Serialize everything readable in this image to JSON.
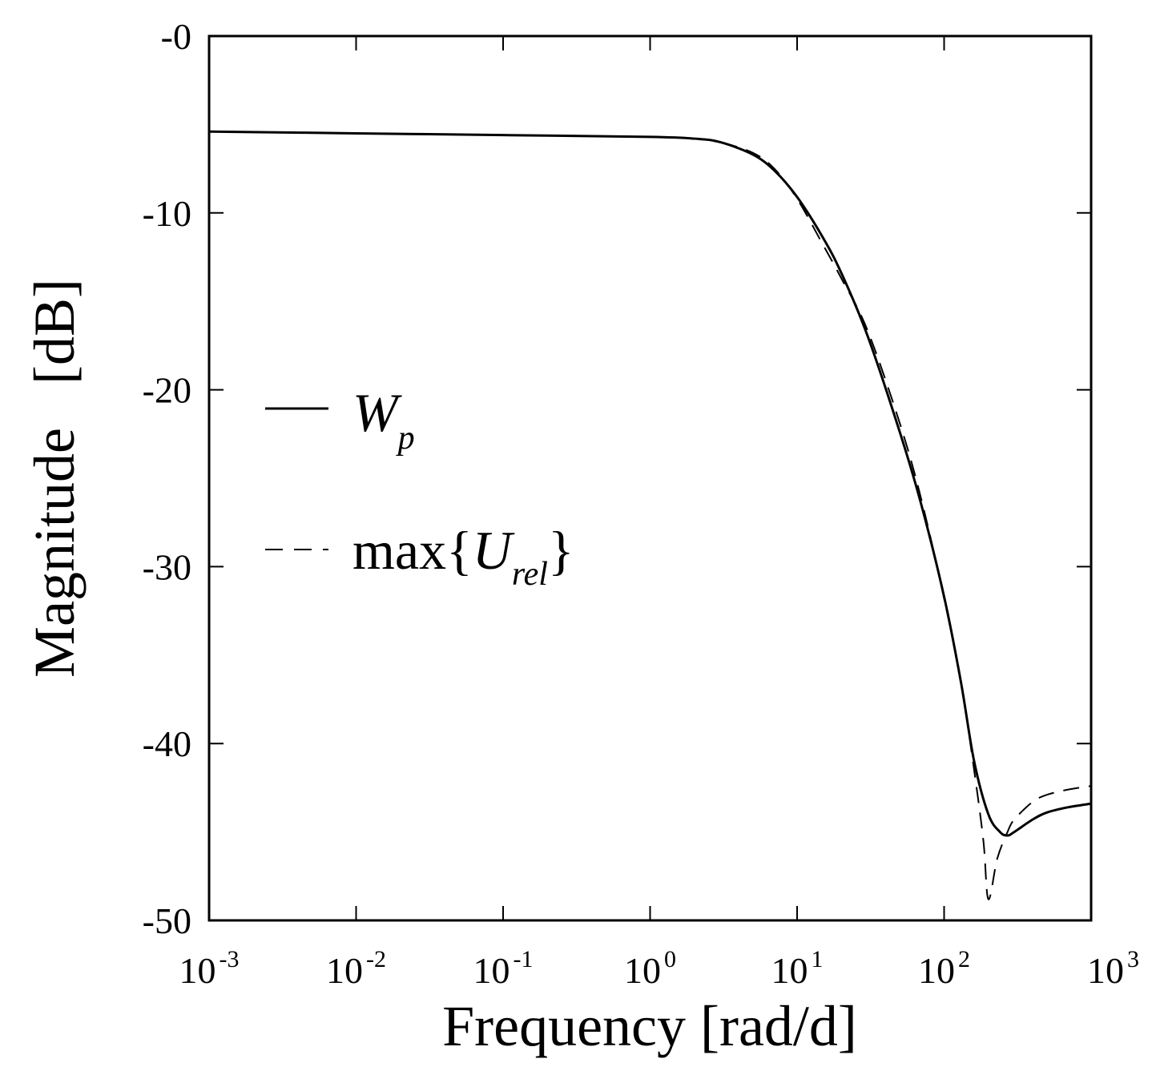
{
  "chart_data": {
    "type": "line",
    "xscale": "log",
    "xlim": [
      0.001,
      1000
    ],
    "ylim": [
      -50,
      0
    ],
    "xlabel": "Frequency [rad/d]",
    "ylabel": "Magnitude   [dB]",
    "y_ticks": [
      {
        "value": 0,
        "label": "-0"
      },
      {
        "value": -10,
        "label": "-10"
      },
      {
        "value": -20,
        "label": "-20"
      },
      {
        "value": -30,
        "label": "-30"
      },
      {
        "value": -40,
        "label": "-40"
      },
      {
        "value": -50,
        "label": "-50"
      }
    ],
    "x_ticks": [
      {
        "value": 0.001,
        "base": "10",
        "exp": "-3"
      },
      {
        "value": 0.01,
        "base": "10",
        "exp": "-2"
      },
      {
        "value": 0.1,
        "base": "10",
        "exp": "-1"
      },
      {
        "value": 1,
        "base": "10",
        "exp": "0"
      },
      {
        "value": 10,
        "base": "10",
        "exp": "1"
      },
      {
        "value": 100,
        "base": "10",
        "exp": "2"
      },
      {
        "value": 1000,
        "base": "10",
        "exp": "3"
      }
    ],
    "legend_position": "center-left",
    "series": [
      {
        "name": "W_p",
        "legend_main": "W",
        "legend_sub": "p",
        "style": "solid",
        "x": [
          0.001,
          0.01,
          0.1,
          1,
          2,
          3,
          5,
          7,
          10,
          15,
          20,
          30,
          50,
          70,
          100,
          130,
          160,
          200,
          240,
          270,
          300,
          400,
          500,
          700,
          1000
        ],
        "y": [
          -5.4,
          -5.5,
          -5.6,
          -5.7,
          -5.8,
          -6.0,
          -6.7,
          -7.6,
          -9.1,
          -11.4,
          -13.4,
          -16.9,
          -22.4,
          -26.5,
          -31.7,
          -36.5,
          -41.0,
          -44.0,
          -45.0,
          -45.2,
          -45.0,
          -44.3,
          -43.9,
          -43.6,
          -43.4
        ]
      },
      {
        "name": "max{U_rel}",
        "legend_prefix": "max{",
        "legend_main": "U",
        "legend_sub": "rel",
        "legend_suffix": "}",
        "style": "dashed",
        "x": [
          0.001,
          0.01,
          0.1,
          1,
          2,
          3,
          5,
          7,
          10,
          15,
          20,
          30,
          50,
          70,
          100,
          130,
          160,
          185,
          200,
          230,
          270,
          300,
          400,
          500,
          700,
          1000
        ],
        "y": [
          -5.4,
          -5.5,
          -5.6,
          -5.7,
          -5.8,
          -6.0,
          -6.6,
          -7.5,
          -9.2,
          -11.8,
          -13.7,
          -16.6,
          -21.9,
          -26.2,
          -31.8,
          -36.5,
          -41.5,
          -45.5,
          -48.8,
          -46.5,
          -45.0,
          -44.3,
          -43.3,
          -42.9,
          -42.6,
          -42.4
        ]
      }
    ]
  }
}
